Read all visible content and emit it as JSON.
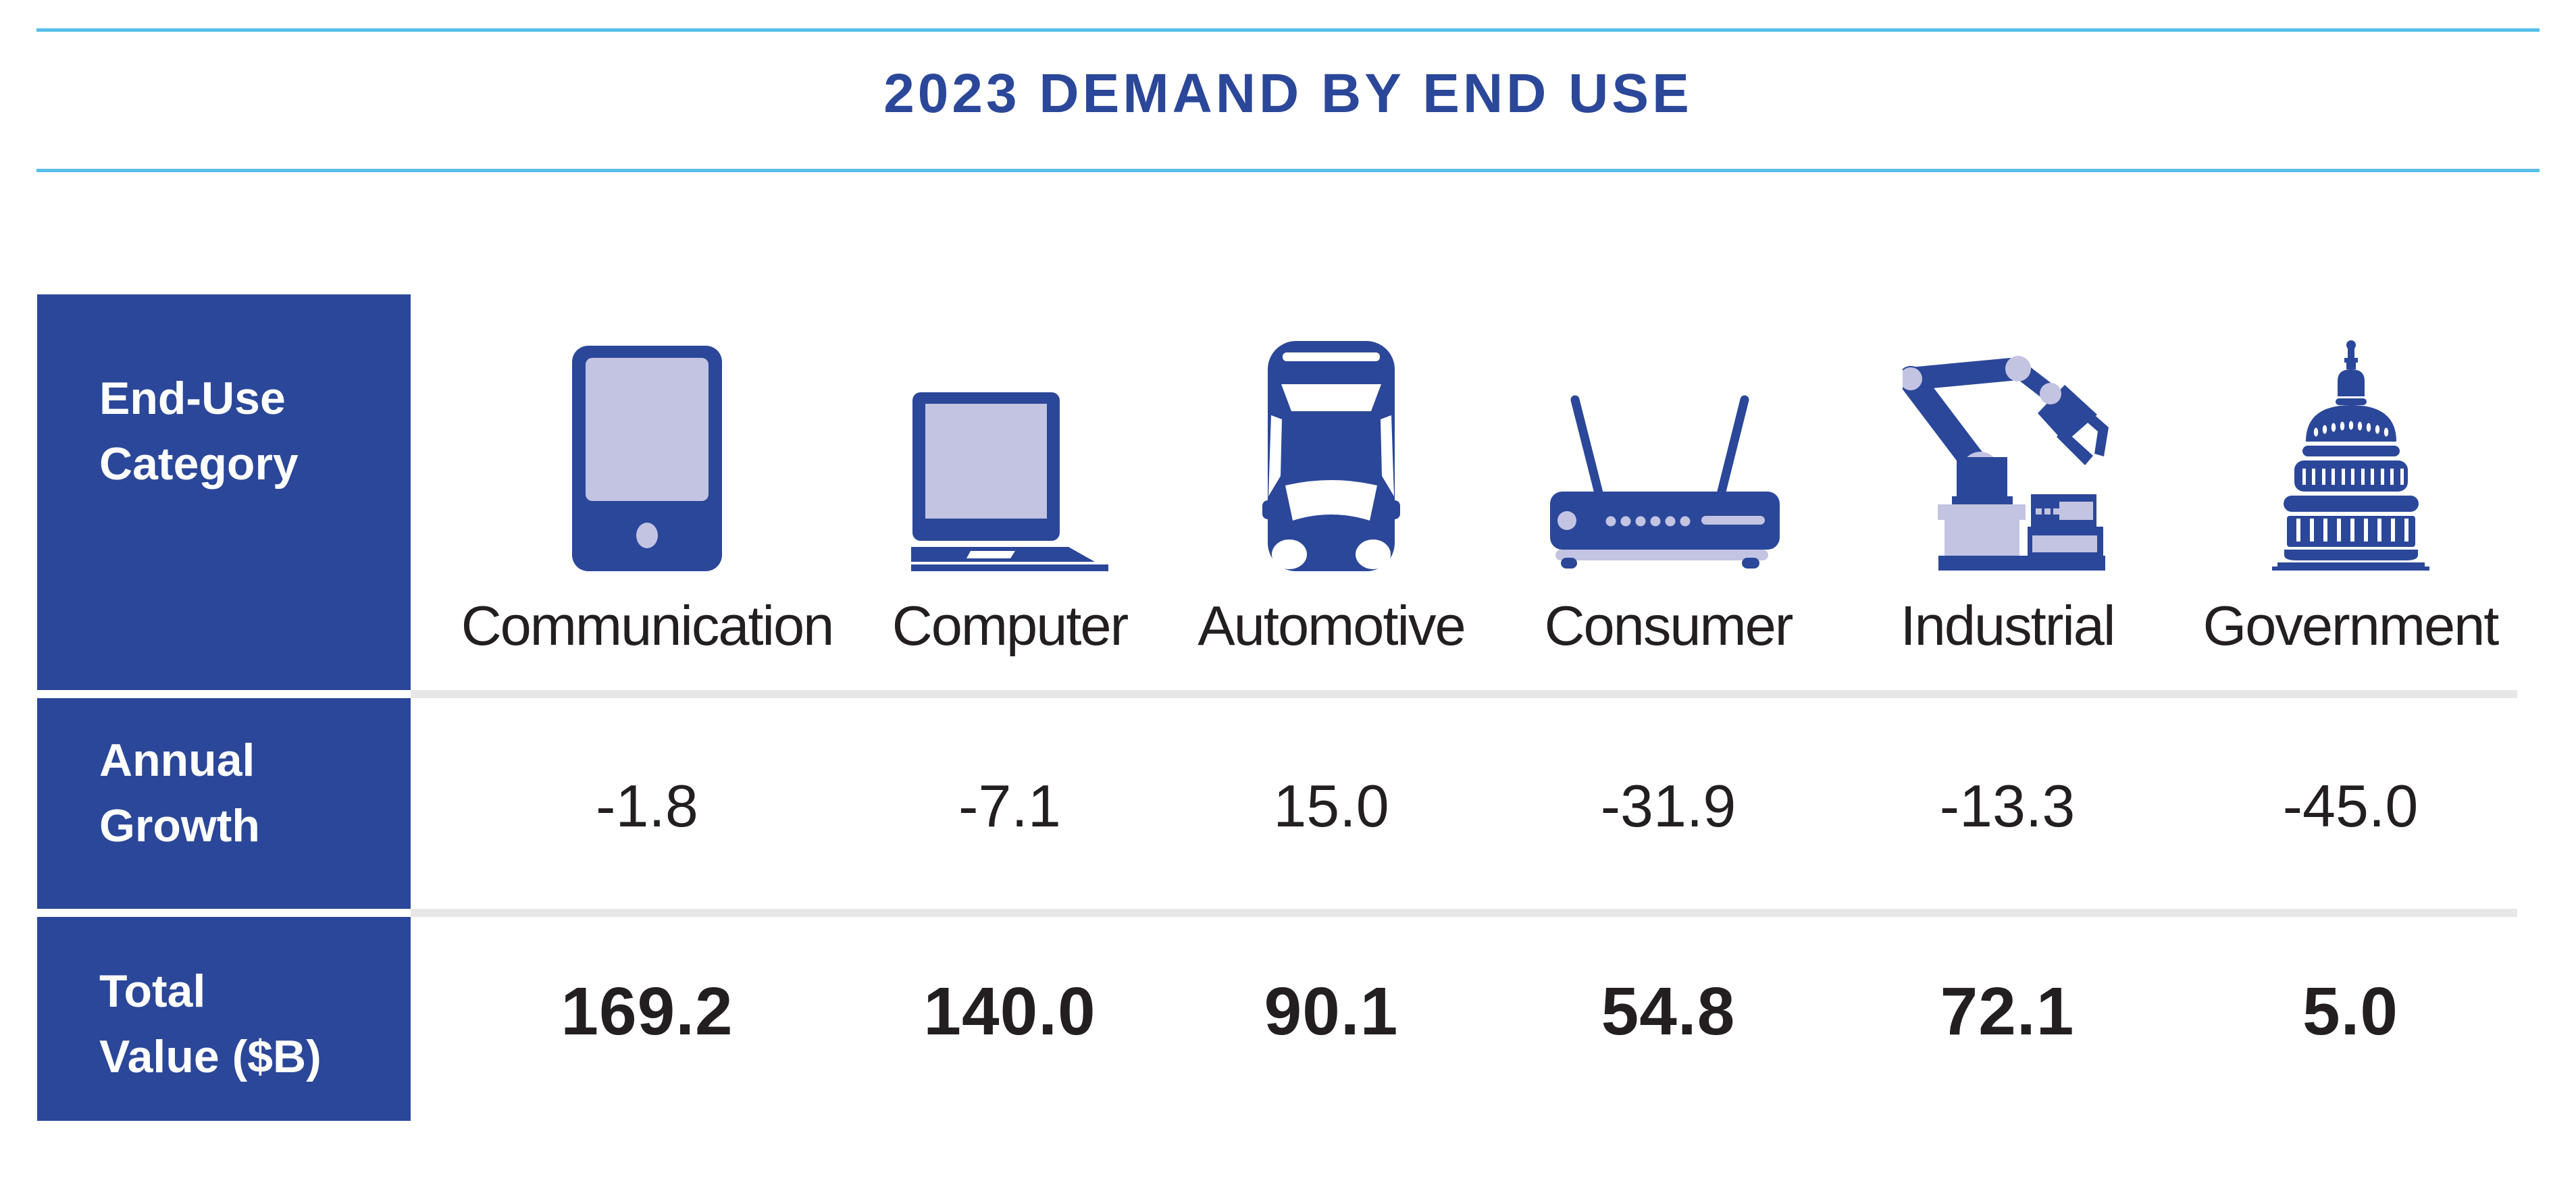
{
  "title": "2023 DEMAND BY END USE",
  "colors": {
    "primary_blue": "#2B4799",
    "lavender": "#C3C4E2",
    "sky_rule": "#56BFE9",
    "text_ink": "#231F20",
    "divider_gray": "#E8E7E7"
  },
  "table": {
    "row_headers": {
      "category": "End-Use\nCategory",
      "growth": "Annual\nGrowth",
      "value": "Total\nValue ($B)"
    },
    "columns": [
      {
        "label": "Communication",
        "icon": "tablet-icon",
        "annual_growth": "-1.8",
        "total_value": "169.2"
      },
      {
        "label": "Computer",
        "icon": "laptop-icon",
        "annual_growth": "-7.1",
        "total_value": "140.0"
      },
      {
        "label": "Automotive",
        "icon": "car-icon",
        "annual_growth": "15.0",
        "total_value": "90.1"
      },
      {
        "label": "Consumer",
        "icon": "router-icon",
        "annual_growth": "-31.9",
        "total_value": "54.8"
      },
      {
        "label": "Industrial",
        "icon": "robot-arm-icon",
        "annual_growth": "-13.3",
        "total_value": "72.1"
      },
      {
        "label": "Government",
        "icon": "capitol-icon",
        "annual_growth": "-45.0",
        "total_value": "5.0"
      }
    ]
  },
  "chart_data": {
    "type": "table",
    "title": "2023 DEMAND BY END USE",
    "categories": [
      "Communication",
      "Computer",
      "Automotive",
      "Consumer",
      "Industrial",
      "Government"
    ],
    "series": [
      {
        "name": "Annual Growth",
        "values": [
          -1.8,
          -7.1,
          15.0,
          -31.9,
          -13.3,
          -45.0
        ]
      },
      {
        "name": "Total Value ($B)",
        "values": [
          169.2,
          140.0,
          90.1,
          54.8,
          72.1,
          5.0
        ]
      }
    ]
  }
}
